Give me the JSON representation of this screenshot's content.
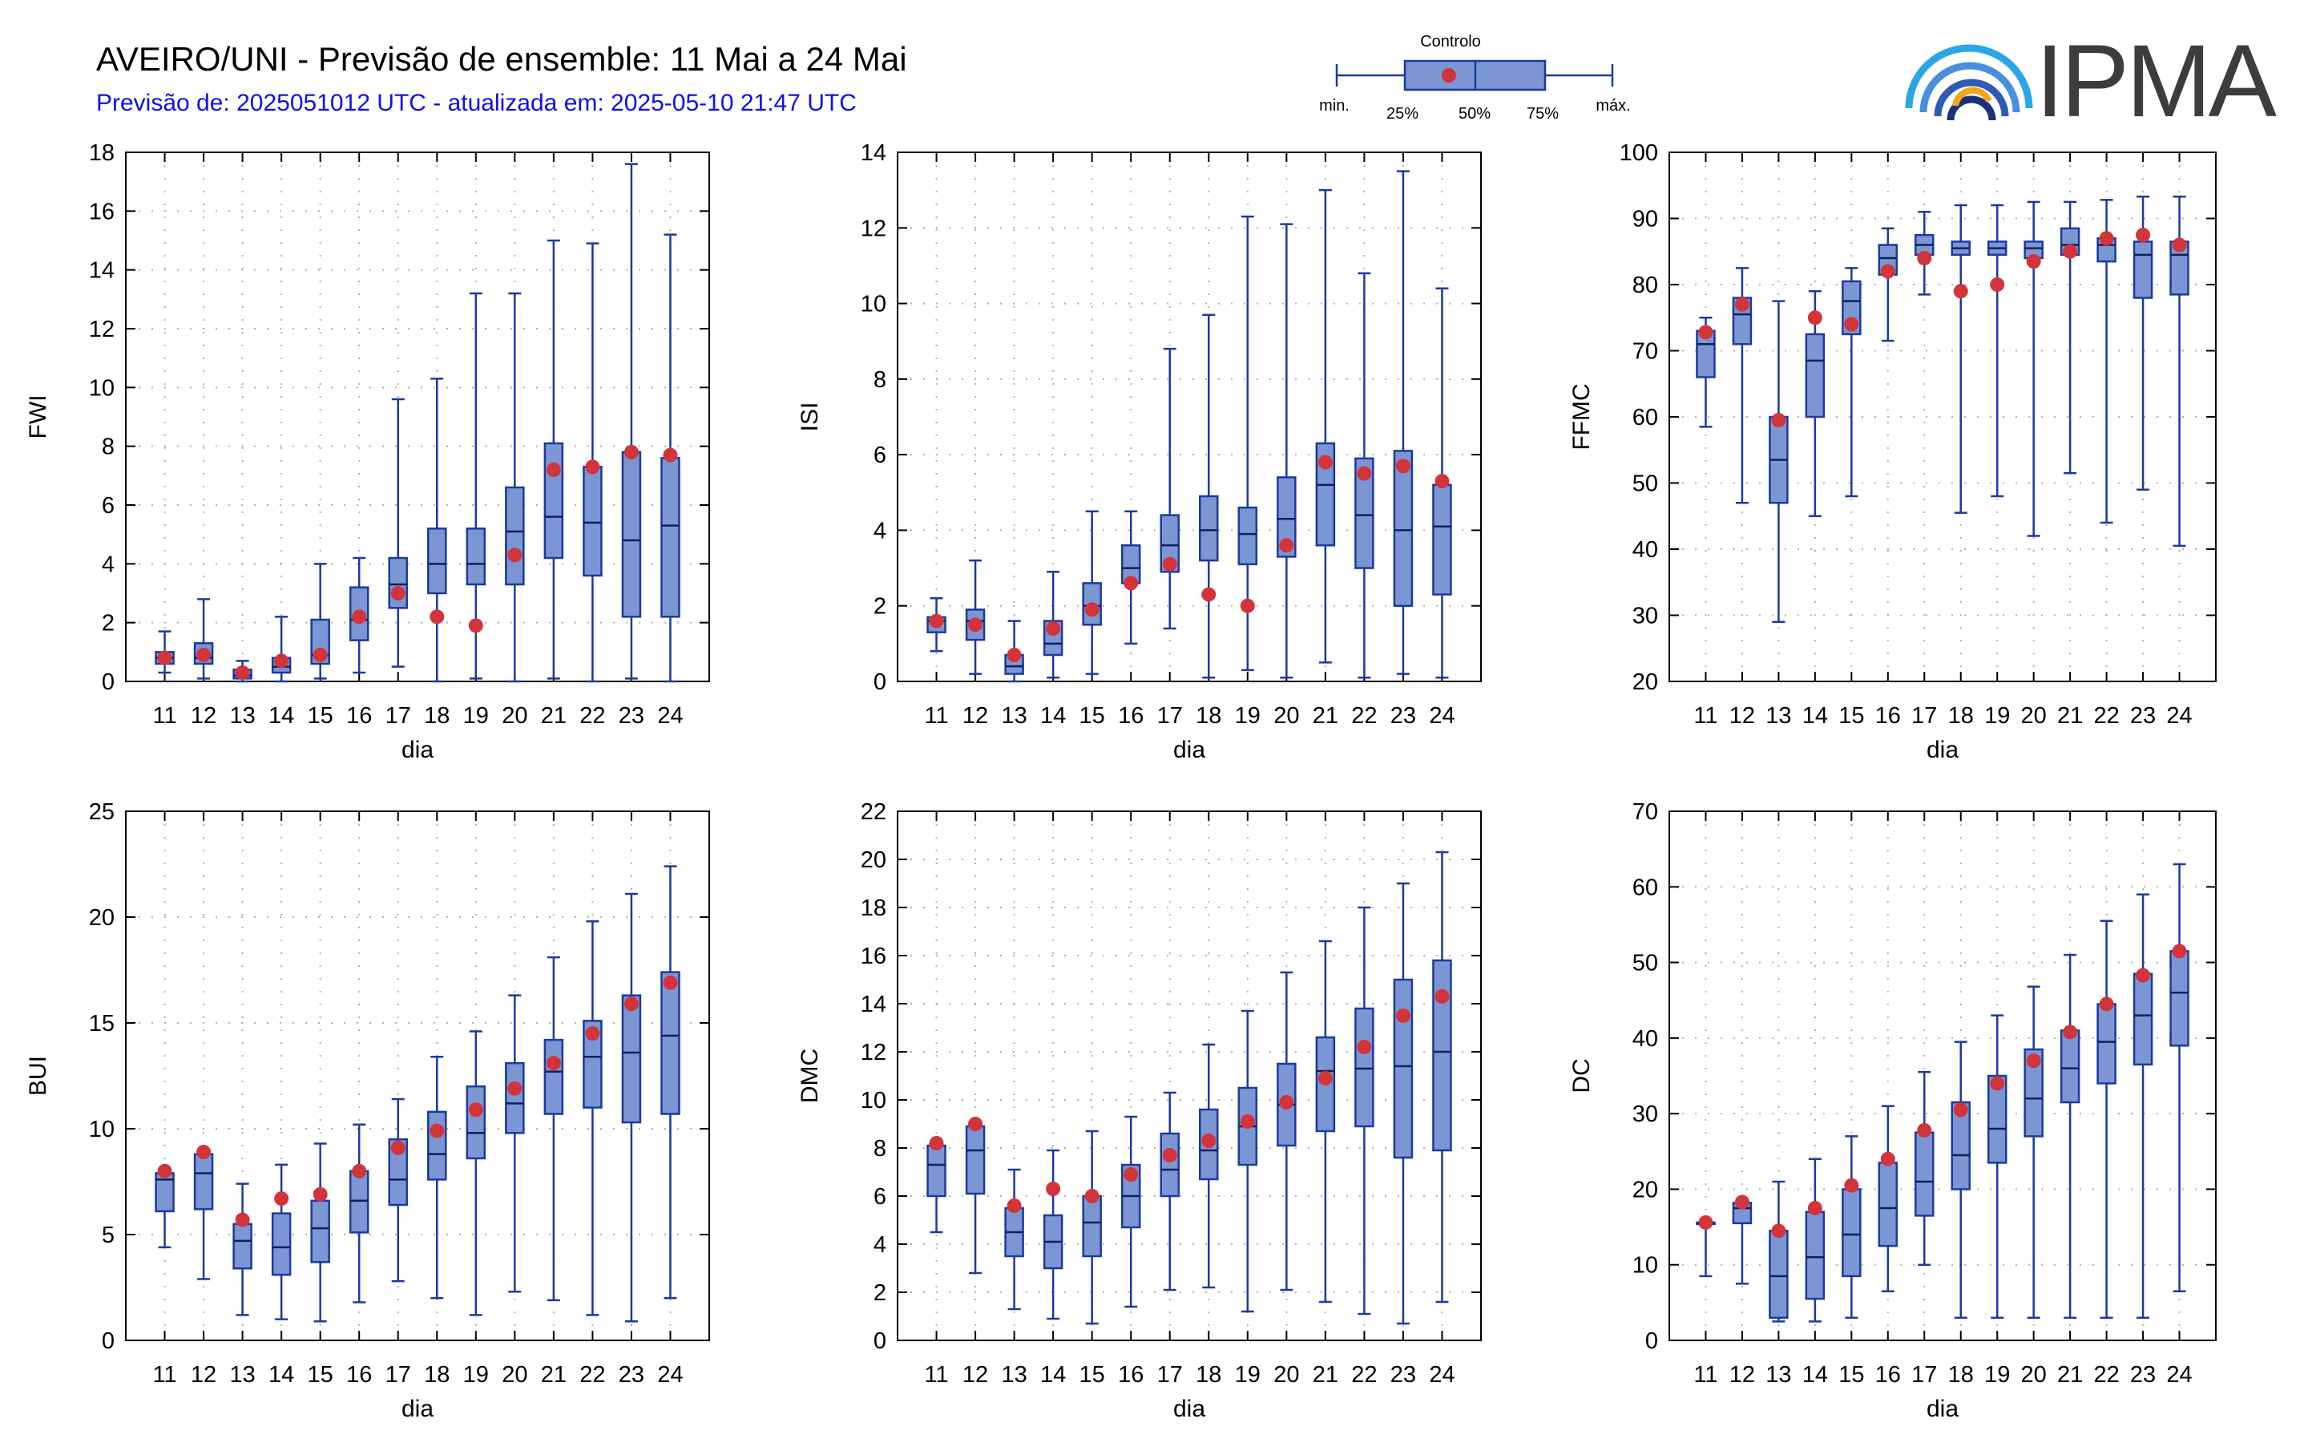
{
  "header": {
    "title": "AVEIRO/UNI - Previsão de ensemble: 11 Mai a 24 Mai",
    "subtitle": "Previsão de: 2025051012 UTC - atualizada em: 2025-05-10 21:47 UTC"
  },
  "legend": {
    "title": "Controlo",
    "min_label": "min.",
    "q25_label": "25%",
    "median_label": "50%",
    "q75_label": "75%",
    "max_label": "máx."
  },
  "logo": {
    "text": "IPMA"
  },
  "colors": {
    "box_fill": "#7b96d2",
    "box_stroke": "#1a3aa0",
    "control_point": "#d2343a",
    "grid": "#b0b0b0"
  },
  "chart_data": [
    {
      "type": "box",
      "ylabel": "FWI",
      "xlabel": "dia",
      "ylim": [
        0,
        18
      ],
      "yticks": [
        0,
        2,
        4,
        6,
        8,
        10,
        12,
        14,
        16,
        18
      ],
      "categories": [
        "11",
        "12",
        "13",
        "14",
        "15",
        "16",
        "17",
        "18",
        "19",
        "20",
        "21",
        "22",
        "23",
        "24"
      ],
      "boxes": [
        {
          "min": 0.3,
          "q1": 0.6,
          "median": 0.8,
          "q3": 1.0,
          "max": 1.7,
          "control": 0.8
        },
        {
          "min": 0.1,
          "q1": 0.6,
          "median": 0.8,
          "q3": 1.3,
          "max": 2.8,
          "control": 0.9
        },
        {
          "min": 0.0,
          "q1": 0.1,
          "median": 0.2,
          "q3": 0.4,
          "max": 0.7,
          "control": 0.3
        },
        {
          "min": 0.0,
          "q1": 0.3,
          "median": 0.5,
          "q3": 0.8,
          "max": 2.2,
          "control": 0.7
        },
        {
          "min": 0.1,
          "q1": 0.6,
          "median": 0.9,
          "q3": 2.1,
          "max": 4.0,
          "control": 0.9
        },
        {
          "min": 0.3,
          "q1": 1.4,
          "median": 2.1,
          "q3": 3.2,
          "max": 4.2,
          "control": 2.2
        },
        {
          "min": 0.5,
          "q1": 2.5,
          "median": 3.3,
          "q3": 4.2,
          "max": 9.6,
          "control": 3.0
        },
        {
          "min": 0.0,
          "q1": 3.0,
          "median": 4.0,
          "q3": 5.2,
          "max": 10.3,
          "control": 2.2
        },
        {
          "min": 0.1,
          "q1": 3.3,
          "median": 4.0,
          "q3": 5.2,
          "max": 13.2,
          "control": 1.9
        },
        {
          "min": 0.0,
          "q1": 3.3,
          "median": 5.1,
          "q3": 6.6,
          "max": 13.2,
          "control": 4.3
        },
        {
          "min": 0.1,
          "q1": 4.2,
          "median": 5.6,
          "q3": 8.1,
          "max": 15.0,
          "control": 7.2
        },
        {
          "min": 0.0,
          "q1": 3.6,
          "median": 5.4,
          "q3": 7.3,
          "max": 14.9,
          "control": 7.3
        },
        {
          "min": 0.1,
          "q1": 2.2,
          "median": 4.8,
          "q3": 7.8,
          "max": 17.6,
          "control": 7.8
        },
        {
          "min": 0.0,
          "q1": 2.2,
          "median": 5.3,
          "q3": 7.6,
          "max": 15.2,
          "control": 7.7
        }
      ]
    },
    {
      "type": "box",
      "ylabel": "ISI",
      "xlabel": "dia",
      "ylim": [
        0,
        14
      ],
      "yticks": [
        0,
        2,
        4,
        6,
        8,
        10,
        12,
        14
      ],
      "categories": [
        "11",
        "12",
        "13",
        "14",
        "15",
        "16",
        "17",
        "18",
        "19",
        "20",
        "21",
        "22",
        "23",
        "24"
      ],
      "boxes": [
        {
          "min": 0.8,
          "q1": 1.3,
          "median": 1.6,
          "q3": 1.7,
          "max": 2.2,
          "control": 1.6
        },
        {
          "min": 0.2,
          "q1": 1.1,
          "median": 1.6,
          "q3": 1.9,
          "max": 3.2,
          "control": 1.5
        },
        {
          "min": 0.0,
          "q1": 0.2,
          "median": 0.4,
          "q3": 0.7,
          "max": 1.6,
          "control": 0.7
        },
        {
          "min": 0.1,
          "q1": 0.7,
          "median": 1.0,
          "q3": 1.6,
          "max": 2.9,
          "control": 1.4
        },
        {
          "min": 0.2,
          "q1": 1.5,
          "median": 2.0,
          "q3": 2.6,
          "max": 4.5,
          "control": 1.9
        },
        {
          "min": 1.0,
          "q1": 2.6,
          "median": 3.0,
          "q3": 3.6,
          "max": 4.5,
          "control": 2.6
        },
        {
          "min": 1.4,
          "q1": 2.9,
          "median": 3.6,
          "q3": 4.4,
          "max": 8.8,
          "control": 3.1
        },
        {
          "min": 0.1,
          "q1": 3.2,
          "median": 4.0,
          "q3": 4.9,
          "max": 9.7,
          "control": 2.3
        },
        {
          "min": 0.3,
          "q1": 3.1,
          "median": 3.9,
          "q3": 4.6,
          "max": 12.3,
          "control": 2.0
        },
        {
          "min": 0.1,
          "q1": 3.3,
          "median": 4.3,
          "q3": 5.4,
          "max": 12.1,
          "control": 3.6
        },
        {
          "min": 0.5,
          "q1": 3.6,
          "median": 5.2,
          "q3": 6.3,
          "max": 13.0,
          "control": 5.8
        },
        {
          "min": 0.1,
          "q1": 3.0,
          "median": 4.4,
          "q3": 5.9,
          "max": 10.8,
          "control": 5.5
        },
        {
          "min": 0.2,
          "q1": 2.0,
          "median": 4.0,
          "q3": 6.1,
          "max": 13.5,
          "control": 5.7
        },
        {
          "min": 0.1,
          "q1": 2.3,
          "median": 4.1,
          "q3": 5.2,
          "max": 10.4,
          "control": 5.3
        }
      ]
    },
    {
      "type": "box",
      "ylabel": "FFMC",
      "xlabel": "dia",
      "ylim": [
        20,
        100
      ],
      "yticks": [
        20,
        30,
        40,
        50,
        60,
        70,
        80,
        90,
        100
      ],
      "categories": [
        "11",
        "12",
        "13",
        "14",
        "15",
        "16",
        "17",
        "18",
        "19",
        "20",
        "21",
        "22",
        "23",
        "24"
      ],
      "boxes": [
        {
          "min": 58.5,
          "q1": 66.0,
          "median": 71.0,
          "q3": 73.0,
          "max": 75.0,
          "control": 72.8
        },
        {
          "min": 47.0,
          "q1": 71.0,
          "median": 75.5,
          "q3": 78.0,
          "max": 82.5,
          "control": 77.0
        },
        {
          "min": 29.0,
          "q1": 47.0,
          "median": 53.5,
          "q3": 60.0,
          "max": 77.5,
          "control": 59.5
        },
        {
          "min": 45.0,
          "q1": 60.0,
          "median": 68.5,
          "q3": 72.5,
          "max": 79.0,
          "control": 75.0
        },
        {
          "min": 48.0,
          "q1": 72.5,
          "median": 77.5,
          "q3": 80.5,
          "max": 82.5,
          "control": 74.0
        },
        {
          "min": 71.5,
          "q1": 81.5,
          "median": 84.0,
          "q3": 86.0,
          "max": 88.5,
          "control": 82.0
        },
        {
          "min": 78.5,
          "q1": 84.5,
          "median": 86.0,
          "q3": 87.5,
          "max": 91.0,
          "control": 84.0
        },
        {
          "min": 45.5,
          "q1": 84.5,
          "median": 85.5,
          "q3": 86.5,
          "max": 92.0,
          "control": 79.0
        },
        {
          "min": 48.0,
          "q1": 84.5,
          "median": 85.5,
          "q3": 86.5,
          "max": 92.0,
          "control": 80.0
        },
        {
          "min": 42.0,
          "q1": 84.0,
          "median": 85.5,
          "q3": 86.5,
          "max": 92.5,
          "control": 83.5
        },
        {
          "min": 51.5,
          "q1": 84.5,
          "median": 86.0,
          "q3": 88.5,
          "max": 92.5,
          "control": 85.0
        },
        {
          "min": 44.0,
          "q1": 83.5,
          "median": 86.0,
          "q3": 87.0,
          "max": 92.8,
          "control": 87.0
        },
        {
          "min": 49.0,
          "q1": 78.0,
          "median": 84.5,
          "q3": 86.5,
          "max": 93.3,
          "control": 87.5
        },
        {
          "min": 40.5,
          "q1": 78.5,
          "median": 84.5,
          "q3": 86.5,
          "max": 93.3,
          "control": 86.0
        }
      ]
    },
    {
      "type": "box",
      "ylabel": "BUI",
      "xlabel": "dia",
      "ylim": [
        0,
        25
      ],
      "yticks": [
        0,
        5,
        10,
        15,
        20,
        25
      ],
      "categories": [
        "11",
        "12",
        "13",
        "14",
        "15",
        "16",
        "17",
        "18",
        "19",
        "20",
        "21",
        "22",
        "23",
        "24"
      ],
      "boxes": [
        {
          "min": 4.4,
          "q1": 6.1,
          "median": 7.6,
          "q3": 7.9,
          "max": 8.0,
          "control": 8.0
        },
        {
          "min": 2.9,
          "q1": 6.2,
          "median": 7.9,
          "q3": 8.8,
          "max": 8.9,
          "control": 8.9
        },
        {
          "min": 1.2,
          "q1": 3.4,
          "median": 4.7,
          "q3": 5.5,
          "max": 7.4,
          "control": 5.7
        },
        {
          "min": 1.0,
          "q1": 3.1,
          "median": 4.4,
          "q3": 6.0,
          "max": 8.3,
          "control": 6.7
        },
        {
          "min": 0.9,
          "q1": 3.7,
          "median": 5.3,
          "q3": 6.6,
          "max": 9.3,
          "control": 6.9
        },
        {
          "min": 1.8,
          "q1": 5.1,
          "median": 6.6,
          "q3": 8.0,
          "max": 10.2,
          "control": 8.0
        },
        {
          "min": 2.8,
          "q1": 6.4,
          "median": 7.6,
          "q3": 9.5,
          "max": 11.4,
          "control": 9.1
        },
        {
          "min": 2.0,
          "q1": 7.6,
          "median": 8.8,
          "q3": 10.8,
          "max": 13.4,
          "control": 9.9
        },
        {
          "min": 1.2,
          "q1": 8.6,
          "median": 9.8,
          "q3": 12.0,
          "max": 14.6,
          "control": 10.9
        },
        {
          "min": 2.3,
          "q1": 9.8,
          "median": 11.2,
          "q3": 13.1,
          "max": 16.3,
          "control": 11.9
        },
        {
          "min": 1.9,
          "q1": 10.7,
          "median": 12.7,
          "q3": 14.2,
          "max": 18.1,
          "control": 13.1
        },
        {
          "min": 1.2,
          "q1": 11.0,
          "median": 13.4,
          "q3": 15.1,
          "max": 19.8,
          "control": 14.5
        },
        {
          "min": 0.9,
          "q1": 10.3,
          "median": 13.6,
          "q3": 16.3,
          "max": 21.1,
          "control": 15.9
        },
        {
          "min": 2.0,
          "q1": 10.7,
          "median": 14.4,
          "q3": 17.4,
          "max": 22.4,
          "control": 16.9
        }
      ]
    },
    {
      "type": "box",
      "ylabel": "DMC",
      "xlabel": "dia",
      "ylim": [
        0,
        22
      ],
      "yticks": [
        0,
        2,
        4,
        6,
        8,
        10,
        12,
        14,
        16,
        18,
        20,
        22
      ],
      "categories": [
        "11",
        "12",
        "13",
        "14",
        "15",
        "16",
        "17",
        "18",
        "19",
        "20",
        "21",
        "22",
        "23",
        "24"
      ],
      "boxes": [
        {
          "min": 4.5,
          "q1": 6.0,
          "median": 7.3,
          "q3": 8.1,
          "max": 8.2,
          "control": 8.2
        },
        {
          "min": 2.8,
          "q1": 6.1,
          "median": 7.9,
          "q3": 8.9,
          "max": 9.0,
          "control": 9.0
        },
        {
          "min": 1.3,
          "q1": 3.5,
          "median": 4.5,
          "q3": 5.5,
          "max": 7.1,
          "control": 5.6
        },
        {
          "min": 0.9,
          "q1": 3.0,
          "median": 4.1,
          "q3": 5.2,
          "max": 7.9,
          "control": 6.3
        },
        {
          "min": 0.7,
          "q1": 3.5,
          "median": 4.9,
          "q3": 6.0,
          "max": 8.7,
          "control": 6.0
        },
        {
          "min": 1.4,
          "q1": 4.7,
          "median": 6.0,
          "q3": 7.3,
          "max": 9.3,
          "control": 6.9
        },
        {
          "min": 2.1,
          "q1": 6.0,
          "median": 7.1,
          "q3": 8.6,
          "max": 10.3,
          "control": 7.7
        },
        {
          "min": 2.2,
          "q1": 6.7,
          "median": 7.9,
          "q3": 9.6,
          "max": 12.3,
          "control": 8.3
        },
        {
          "min": 1.2,
          "q1": 7.3,
          "median": 8.9,
          "q3": 10.5,
          "max": 13.7,
          "control": 9.1
        },
        {
          "min": 2.1,
          "q1": 8.1,
          "median": 9.8,
          "q3": 11.5,
          "max": 15.3,
          "control": 9.9
        },
        {
          "min": 1.6,
          "q1": 8.7,
          "median": 11.2,
          "q3": 12.6,
          "max": 16.6,
          "control": 10.9
        },
        {
          "min": 1.1,
          "q1": 8.9,
          "median": 11.3,
          "q3": 13.8,
          "max": 18.0,
          "control": 12.2
        },
        {
          "min": 0.7,
          "q1": 7.6,
          "median": 11.4,
          "q3": 15.0,
          "max": 19.0,
          "control": 13.5
        },
        {
          "min": 1.6,
          "q1": 7.9,
          "median": 12.0,
          "q3": 15.8,
          "max": 20.3,
          "control": 14.3
        }
      ]
    },
    {
      "type": "box",
      "ylabel": "DC",
      "xlabel": "dia",
      "ylim": [
        0,
        70
      ],
      "yticks": [
        0,
        10,
        20,
        30,
        40,
        50,
        60,
        70
      ],
      "categories": [
        "11",
        "12",
        "13",
        "14",
        "15",
        "16",
        "17",
        "18",
        "19",
        "20",
        "21",
        "22",
        "23",
        "24"
      ],
      "boxes": [
        {
          "min": 8.5,
          "q1": 15.5,
          "median": 15.5,
          "q3": 15.6,
          "max": 15.6,
          "control": 15.6
        },
        {
          "min": 7.5,
          "q1": 15.5,
          "median": 17.5,
          "q3": 18.2,
          "max": 18.3,
          "control": 18.3
        },
        {
          "min": 2.5,
          "q1": 3.0,
          "median": 8.5,
          "q3": 14.5,
          "max": 21.0,
          "control": 14.5
        },
        {
          "min": 2.5,
          "q1": 5.5,
          "median": 11.0,
          "q3": 17.0,
          "max": 24.0,
          "control": 17.5
        },
        {
          "min": 3.0,
          "q1": 8.5,
          "median": 14.0,
          "q3": 20.0,
          "max": 27.0,
          "control": 20.5
        },
        {
          "min": 6.5,
          "q1": 12.5,
          "median": 17.5,
          "q3": 23.5,
          "max": 31.0,
          "control": 24.0
        },
        {
          "min": 10.0,
          "q1": 16.5,
          "median": 21.0,
          "q3": 27.5,
          "max": 35.5,
          "control": 27.8
        },
        {
          "min": 3.0,
          "q1": 20.0,
          "median": 24.5,
          "q3": 31.5,
          "max": 39.5,
          "control": 30.5
        },
        {
          "min": 3.0,
          "q1": 23.5,
          "median": 28.0,
          "q3": 35.0,
          "max": 43.0,
          "control": 34.0
        },
        {
          "min": 3.0,
          "q1": 27.0,
          "median": 32.0,
          "q3": 38.5,
          "max": 46.8,
          "control": 37.0
        },
        {
          "min": 3.0,
          "q1": 31.5,
          "median": 36.0,
          "q3": 41.0,
          "max": 51.0,
          "control": 40.8
        },
        {
          "min": 3.0,
          "q1": 34.0,
          "median": 39.5,
          "q3": 44.5,
          "max": 55.5,
          "control": 44.5
        },
        {
          "min": 3.0,
          "q1": 36.5,
          "median": 43.0,
          "q3": 48.5,
          "max": 59.0,
          "control": 48.3
        },
        {
          "min": 6.5,
          "q1": 39.0,
          "median": 46.0,
          "q3": 51.5,
          "max": 63.0,
          "control": 51.5
        }
      ]
    }
  ]
}
